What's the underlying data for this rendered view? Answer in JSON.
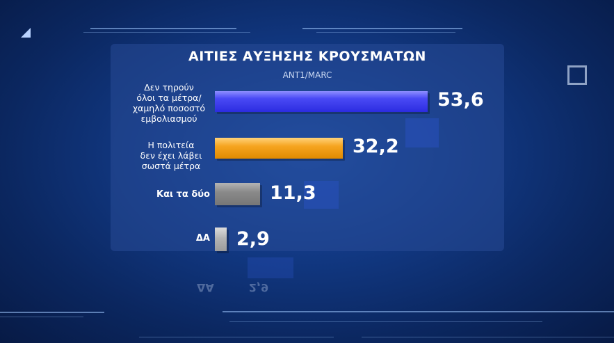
{
  "title": "ΑΙΤΙΕΣ ΑΥΞΗΣΗΣ ΚΡΟΥΣΜΑΤΩΝ",
  "source": "ANT1/MARC",
  "colors": {
    "blue_bar": "#3d3df2",
    "orange_bar": "#f6a520",
    "gray_bar": "#8a8a8a",
    "light_gray_bar": "#b4b4b4"
  },
  "labels": {
    "c0": [
      "Δεν τηρούν",
      "όλοι τα μέτρα/",
      "χαμηλό ποσοστό",
      "εμβολιασμού"
    ],
    "c1": [
      "Η πολιτεία",
      "δεν έχει λάβει",
      "σωστά μέτρα"
    ],
    "c2": "Και τα δύο",
    "c3": "ΔΑ"
  },
  "value_labels": [
    "53,6",
    "32,2",
    "11,3",
    "2,9"
  ],
  "chart_data": {
    "type": "bar",
    "orientation": "horizontal",
    "title": "ΑΙΤΙΕΣ ΑΥΞΗΣΗΣ ΚΡΟΥΣΜΑΤΩΝ",
    "subtitle": "ANT1/MARC",
    "categories": [
      "Δεν τηρούν όλοι τα μέτρα/ χαμηλό ποσοστό εμβολιασμού",
      "Η πολιτεία δεν έχει λάβει σωστά μέτρα",
      "Και τα δύο",
      "ΔΑ"
    ],
    "values": [
      53.6,
      32.2,
      11.3,
      2.9
    ],
    "xlim": [
      0,
      53.6
    ],
    "grid": false,
    "legend": "none"
  }
}
